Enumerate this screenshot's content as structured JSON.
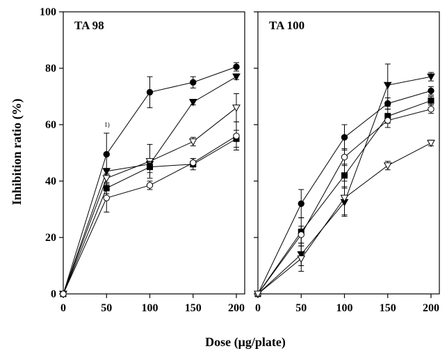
{
  "figure": {
    "xlabel": "Dose (μg/plate)",
    "ylabel": "Inhibition ratio (%)"
  },
  "chart_data": [
    {
      "type": "line",
      "title": "TA 98",
      "xlabel": "Dose (μg/plate)",
      "ylabel": "Inhibition ratio (%)",
      "x": [
        0,
        50,
        100,
        150,
        200
      ],
      "xlim": [
        0,
        210
      ],
      "ylim": [
        0,
        100
      ],
      "xticks": [
        0,
        50,
        100,
        150,
        200
      ],
      "yticks": [
        0,
        20,
        40,
        60,
        80,
        100
      ],
      "annotation": {
        "text": "1)",
        "x": 50,
        "y": 60
      },
      "series": [
        {
          "marker": "circle-filled",
          "values": [
            0,
            49.5,
            71.5,
            75,
            80.5
          ],
          "errors": [
            0,
            7.5,
            5.5,
            2,
            1.5
          ]
        },
        {
          "marker": "triangle-down-filled",
          "values": [
            0,
            43.5,
            46,
            68,
            77
          ],
          "errors": [
            0,
            1,
            1.5,
            1,
            1
          ]
        },
        {
          "marker": "triangle-down-open",
          "values": [
            0,
            41,
            47,
            54,
            66
          ],
          "errors": [
            0,
            1.5,
            6,
            1.5,
            5
          ]
        },
        {
          "marker": "square-filled",
          "values": [
            0,
            37.5,
            45,
            46,
            55
          ],
          "errors": [
            0,
            2,
            2,
            2,
            3
          ]
        },
        {
          "marker": "circle-open",
          "values": [
            0,
            34,
            38.5,
            46.5,
            56
          ],
          "errors": [
            0,
            5,
            1.5,
            1.5,
            5
          ]
        }
      ]
    },
    {
      "type": "line",
      "title": "TA 100",
      "xlabel": "Dose (μg/plate)",
      "ylabel": "",
      "x": [
        0,
        50,
        100,
        150,
        200
      ],
      "xlim": [
        0,
        210
      ],
      "ylim": [
        0,
        100
      ],
      "xticks": [
        0,
        50,
        100,
        150,
        200
      ],
      "yticks": [
        0,
        20,
        40,
        60,
        80,
        100
      ],
      "series": [
        {
          "marker": "circle-filled",
          "values": [
            0,
            32,
            55.5,
            67.5,
            72
          ],
          "errors": [
            0,
            5,
            4.5,
            2,
            1.5
          ]
        },
        {
          "marker": "triangle-down-filled",
          "values": [
            0,
            14,
            32.5,
            74,
            77
          ],
          "errors": [
            0,
            4,
            5,
            7.5,
            1.5
          ]
        },
        {
          "marker": "square-filled",
          "values": [
            0,
            22,
            42,
            63,
            68.5
          ],
          "errors": [
            0,
            5,
            4,
            2.5,
            1.5
          ]
        },
        {
          "marker": "circle-open",
          "values": [
            0,
            21,
            48.5,
            61.5,
            65.5
          ],
          "errors": [
            0,
            3,
            3,
            2.5,
            1.5
          ]
        },
        {
          "marker": "triangle-down-open",
          "values": [
            0,
            12.5,
            34,
            45.5,
            53.5
          ],
          "errors": [
            0,
            4.5,
            6,
            1.5,
            1
          ]
        }
      ]
    }
  ]
}
